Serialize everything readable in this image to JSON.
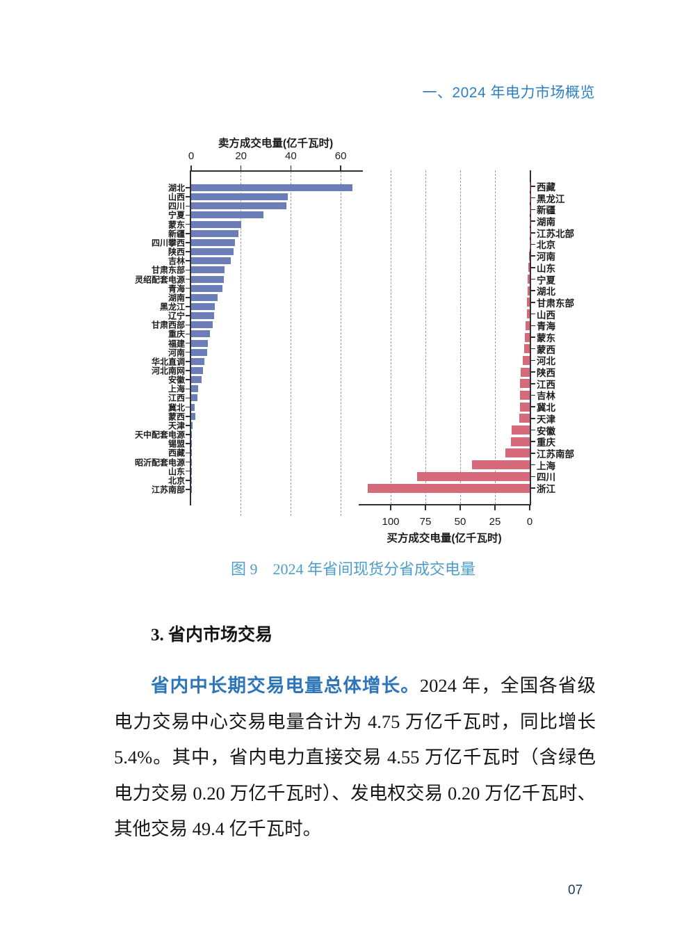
{
  "page": {
    "header": "一、2024 年电力市场概览",
    "page_number": "07"
  },
  "figure": {
    "caption": "图 9　2024 年省间现货分省成交电量"
  },
  "section": {
    "heading": "3. 省内市场交易",
    "paragraph": {
      "line1_highlight": "省内中长期交易电量总体增长。",
      "line1_rest": "2024 年，全国各省级",
      "line2": "电力交易中心交易电量合计为 4.75 万亿千瓦时，同比增长",
      "line3": "5.4%。其中，省内电力直接交易 4.55 万亿千瓦时（含绿色",
      "line4": "电力交易 0.20 万亿千瓦时）、发电权交易 0.20 万亿千瓦时、",
      "line5": "其他交易 49.4 亿千瓦时。"
    }
  },
  "colors": {
    "header_blue": "#2e80c4",
    "caption_blue": "#4e9dc8",
    "highlight_blue": "#2d74b8",
    "seller_bar": "#6b7eb8",
    "buyer_bar": "#d6697a"
  },
  "chart_data": [
    {
      "type": "bar",
      "orientation": "horizontal",
      "panel": "left",
      "title": "卖方成交电量(亿千瓦时)",
      "bar_color": "#6b7eb8",
      "value_axis": {
        "position": "top",
        "direction": "left-to-right",
        "ticks": [
          0,
          20,
          40,
          60
        ],
        "max": 68.9
      },
      "grid": "dashed-vertical",
      "categories": [
        "湖北",
        "山西",
        "四川",
        "宁夏",
        "蒙东",
        "新疆",
        "四川攀西",
        "陕西",
        "吉林",
        "甘肃东部",
        "灵绍配套电源",
        "青海",
        "湖南",
        "黑龙江",
        "辽宁",
        "甘肃西部",
        "重庆",
        "福建",
        "河南",
        "华北直调",
        "河北南网",
        "安徽",
        "上海",
        "江西",
        "冀北",
        "蒙西",
        "天津",
        "天中配套电源",
        "锡盟",
        "西藏",
        "昭沂配套电源",
        "山东",
        "北京",
        "江苏南部"
      ],
      "values": [
        64.8,
        38.8,
        38.2,
        28.9,
        20.1,
        19.0,
        17.6,
        17.0,
        15.8,
        13.4,
        13.2,
        12.6,
        10.7,
        9.5,
        9.3,
        8.6,
        7.4,
        6.6,
        6.4,
        5.3,
        4.7,
        4.2,
        2.8,
        2.5,
        1.4,
        1.6,
        0.5,
        0.2,
        0.15,
        0.1,
        0.1,
        0.1,
        0.05,
        0.05
      ]
    },
    {
      "type": "bar",
      "orientation": "horizontal",
      "panel": "right",
      "title": "买方成交电量(亿千瓦时)",
      "bar_color": "#d6697a",
      "value_axis": {
        "position": "bottom",
        "direction": "right-to-left",
        "ticks": [
          100,
          75,
          50,
          25,
          0
        ],
        "max": 123
      },
      "grid": "dashed-vertical",
      "categories": [
        "西藏",
        "黑龙江",
        "新疆",
        "湖南",
        "江苏北部",
        "北京",
        "河南",
        "山东",
        "宁夏",
        "湖北",
        "甘肃东部",
        "山西",
        "青海",
        "蒙东",
        "蒙西",
        "河北",
        "陕西",
        "江西",
        "吉林",
        "冀北",
        "天津",
        "安徽",
        "重庆",
        "江苏南部",
        "上海",
        "四川",
        "浙江"
      ],
      "values": [
        0.05,
        0.05,
        0.08,
        0.1,
        0.15,
        0.2,
        0.5,
        1.0,
        1.5,
        1.7,
        2.0,
        2.2,
        2.9,
        3.7,
        4.1,
        4.8,
        6.5,
        6.8,
        7.0,
        7.0,
        7.3,
        13.0,
        13.3,
        17.4,
        41.5,
        80.8,
        116.3
      ]
    }
  ]
}
